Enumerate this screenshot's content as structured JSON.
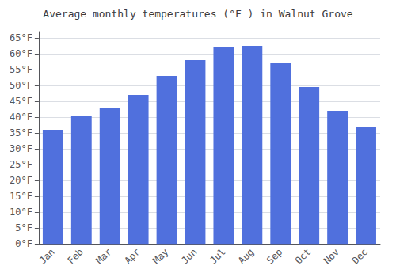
{
  "chart_data": {
    "type": "bar",
    "title": "Average monthly temperatures (°F ) in Walnut Grove",
    "categories": [
      "Jan",
      "Feb",
      "Mar",
      "Apr",
      "May",
      "Jun",
      "Jul",
      "Aug",
      "Sep",
      "Oct",
      "Nov",
      "Dec"
    ],
    "values": [
      36,
      40.5,
      43,
      47,
      53,
      58,
      62,
      62.5,
      57,
      49.5,
      42,
      37
    ],
    "ylim": [
      0,
      67
    ],
    "yticks": [
      {
        "value": 0,
        "label": "0°F"
      },
      {
        "value": 5,
        "label": "5°F"
      },
      {
        "value": 10,
        "label": "10°F"
      },
      {
        "value": 15,
        "label": "15°F"
      },
      {
        "value": 20,
        "label": "20°F"
      },
      {
        "value": 25,
        "label": "25°F"
      },
      {
        "value": 30,
        "label": "30°F"
      },
      {
        "value": 35,
        "label": "35°F"
      },
      {
        "value": 40,
        "label": "40°F"
      },
      {
        "value": 45,
        "label": "45°F"
      },
      {
        "value": 50,
        "label": "50°F"
      },
      {
        "value": 55,
        "label": "55°F"
      },
      {
        "value": 60,
        "label": "60°F"
      },
      {
        "value": 65,
        "label": "65°F"
      }
    ],
    "grid": true
  }
}
